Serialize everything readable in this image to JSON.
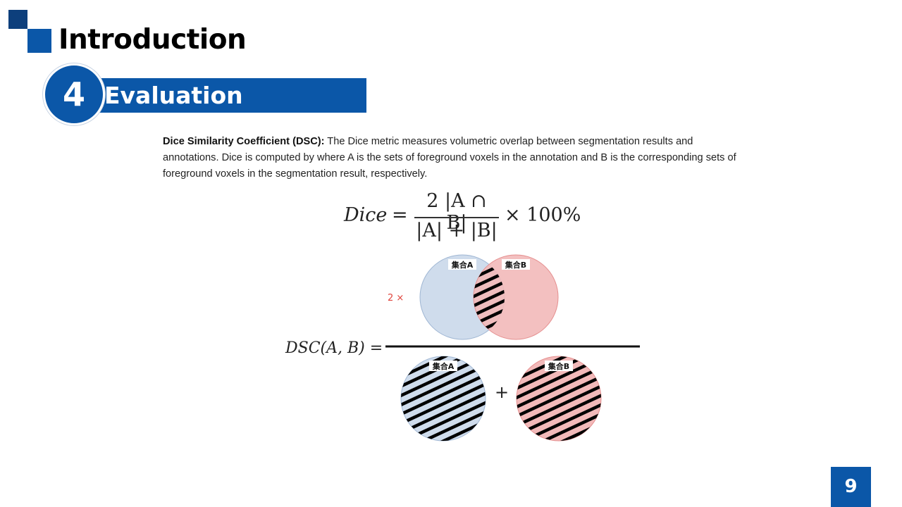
{
  "header": {
    "title": "Introduction"
  },
  "section": {
    "number": "4",
    "label": "Evaluation"
  },
  "paragraph": {
    "term": "Dice Similarity Coefficient (DSC):",
    "text": " The Dice metric measures volumetric overlap between segmentation results and annotations. Dice is computed by where A is the sets of foreground voxels in the annotation and B is the corresponding sets of foreground voxels in the segmentation result, respectively."
  },
  "formula": {
    "lhs": "Dice",
    "eq": "=",
    "numerator": "2 |A ∩ B|",
    "denominator": "|A| + |B|",
    "multiplier": "× 100%"
  },
  "diagram": {
    "lhs": "DSC(A, B) =",
    "factor": "2 ×",
    "set_a": "集合A",
    "set_b": "集合B",
    "plus": "+"
  },
  "colors": {
    "brand": "#0b57a8",
    "brand_dark": "#0d3f7c",
    "set_a_fill": "#cfdcec",
    "set_b_fill": "#f2b9b9",
    "factor_red": "#e0443c"
  },
  "page": {
    "number": "9"
  }
}
